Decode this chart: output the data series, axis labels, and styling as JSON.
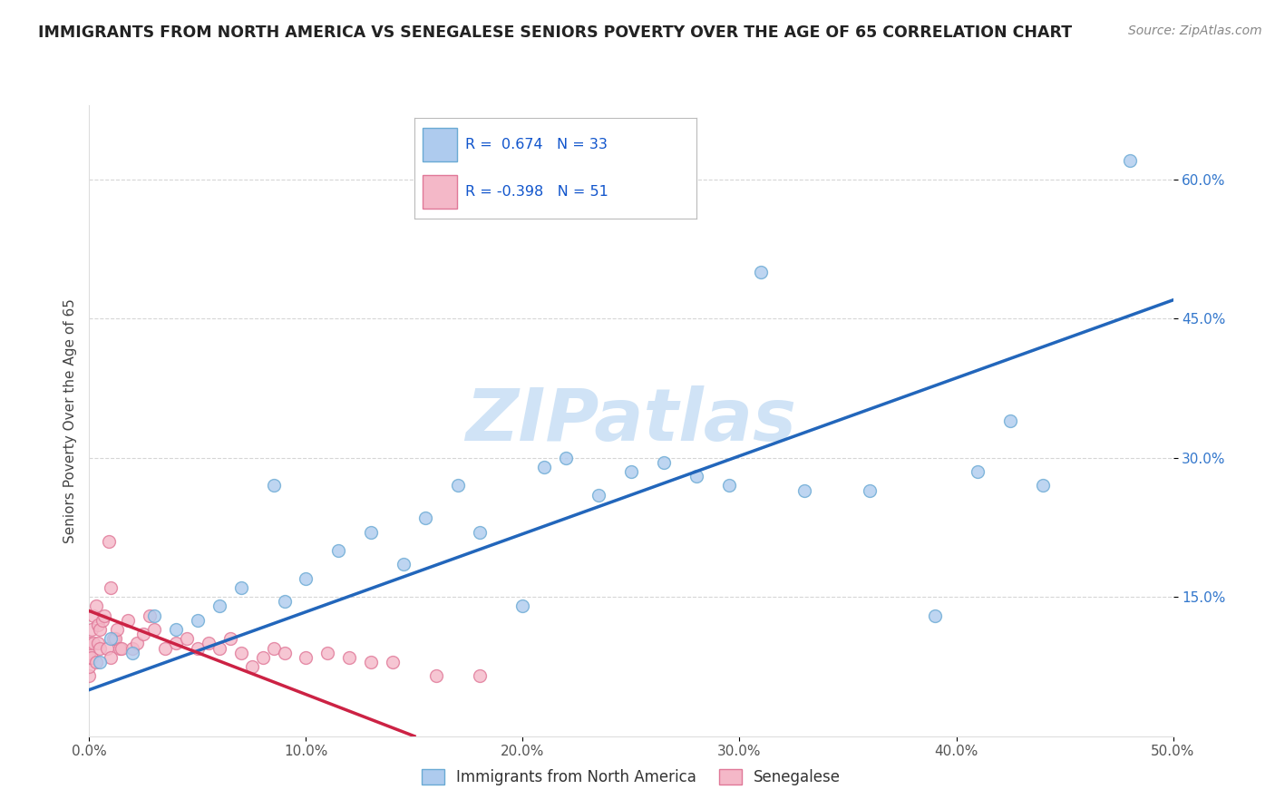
{
  "title": "IMMIGRANTS FROM NORTH AMERICA VS SENEGALESE SENIORS POVERTY OVER THE AGE OF 65 CORRELATION CHART",
  "source": "Source: ZipAtlas.com",
  "ylabel": "Seniors Poverty Over the Age of 65",
  "xlim": [
    0.0,
    0.5
  ],
  "ylim": [
    0.0,
    0.68
  ],
  "xticks": [
    0.0,
    0.1,
    0.2,
    0.3,
    0.4,
    0.5
  ],
  "xtick_labels": [
    "0.0%",
    "10.0%",
    "20.0%",
    "30.0%",
    "40.0%",
    "50.0%"
  ],
  "yticks": [
    0.15,
    0.3,
    0.45,
    0.6
  ],
  "ytick_labels": [
    "15.0%",
    "30.0%",
    "45.0%",
    "60.0%"
  ],
  "blue_R": "0.674",
  "blue_N": "33",
  "pink_R": "-0.398",
  "pink_N": "51",
  "blue_color": "#aecbee",
  "blue_edge": "#6aaad4",
  "pink_color": "#f4b8c8",
  "pink_edge": "#e07898",
  "blue_line_color": "#2266bb",
  "pink_line_color": "#cc2244",
  "watermark": "ZIPatlas",
  "watermark_color": "#c8dff5",
  "legend_label_blue": "Immigrants from North America",
  "legend_label_pink": "Senegalese",
  "blue_line_x0": 0.0,
  "blue_line_y0": 0.05,
  "blue_line_x1": 0.5,
  "blue_line_y1": 0.47,
  "pink_line_x0": 0.0,
  "pink_line_y0": 0.135,
  "pink_line_x1": 0.15,
  "pink_line_y1": 0.0,
  "blue_x": [
    0.005,
    0.01,
    0.02,
    0.03,
    0.04,
    0.05,
    0.06,
    0.07,
    0.085,
    0.09,
    0.1,
    0.115,
    0.13,
    0.145,
    0.155,
    0.17,
    0.18,
    0.2,
    0.21,
    0.22,
    0.235,
    0.25,
    0.265,
    0.28,
    0.295,
    0.31,
    0.33,
    0.36,
    0.39,
    0.41,
    0.425,
    0.44,
    0.48
  ],
  "blue_y": [
    0.08,
    0.105,
    0.09,
    0.13,
    0.115,
    0.125,
    0.14,
    0.16,
    0.27,
    0.145,
    0.17,
    0.2,
    0.22,
    0.185,
    0.235,
    0.27,
    0.22,
    0.14,
    0.29,
    0.3,
    0.26,
    0.285,
    0.295,
    0.28,
    0.27,
    0.5,
    0.265,
    0.265,
    0.13,
    0.285,
    0.34,
    0.27,
    0.62
  ],
  "pink_x": [
    0.0,
    0.0,
    0.0,
    0.0,
    0.0,
    0.001,
    0.001,
    0.002,
    0.002,
    0.003,
    0.003,
    0.004,
    0.004,
    0.005,
    0.005,
    0.006,
    0.007,
    0.008,
    0.009,
    0.01,
    0.01,
    0.011,
    0.012,
    0.013,
    0.014,
    0.015,
    0.018,
    0.02,
    0.022,
    0.025,
    0.028,
    0.03,
    0.035,
    0.04,
    0.045,
    0.05,
    0.055,
    0.06,
    0.065,
    0.07,
    0.075,
    0.08,
    0.085,
    0.09,
    0.1,
    0.11,
    0.12,
    0.13,
    0.14,
    0.16,
    0.18
  ],
  "pink_y": [
    0.065,
    0.075,
    0.085,
    0.09,
    0.1,
    0.085,
    0.115,
    0.1,
    0.13,
    0.08,
    0.14,
    0.1,
    0.12,
    0.115,
    0.095,
    0.125,
    0.13,
    0.095,
    0.21,
    0.085,
    0.16,
    0.105,
    0.105,
    0.115,
    0.095,
    0.095,
    0.125,
    0.095,
    0.1,
    0.11,
    0.13,
    0.115,
    0.095,
    0.1,
    0.105,
    0.095,
    0.1,
    0.095,
    0.105,
    0.09,
    0.075,
    0.085,
    0.095,
    0.09,
    0.085,
    0.09,
    0.085,
    0.08,
    0.08,
    0.065,
    0.065
  ]
}
